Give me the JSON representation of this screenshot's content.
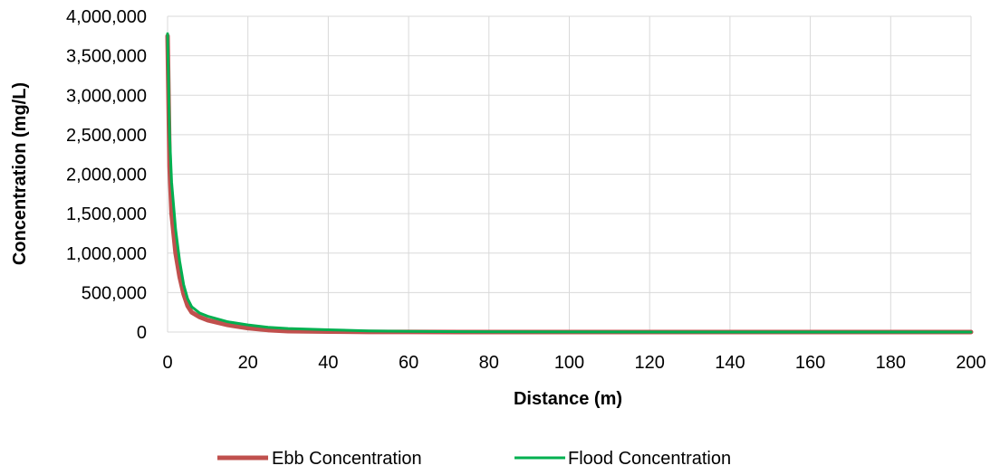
{
  "chart_data": {
    "type": "line",
    "title": "",
    "xlabel": "Distance (m)",
    "ylabel": "Concentration (mg/L)",
    "xlim": [
      0,
      200
    ],
    "ylim": [
      0,
      4000000
    ],
    "xticks": [
      0,
      20,
      40,
      60,
      80,
      100,
      120,
      140,
      160,
      180,
      200
    ],
    "yticks": [
      0,
      500000,
      1000000,
      1500000,
      2000000,
      2500000,
      3000000,
      3500000,
      4000000
    ],
    "xtick_labels": [
      "0",
      "20",
      "40",
      "60",
      "80",
      "100",
      "120",
      "140",
      "160",
      "180",
      "200"
    ],
    "ytick_labels": [
      "0",
      "500,000",
      "1,000,000",
      "1,500,000",
      "2,000,000",
      "2,500,000",
      "3,000,000",
      "3,500,000",
      "4,000,000"
    ],
    "grid": "both",
    "legend_position": "bottom",
    "series": [
      {
        "name": "Ebb Concentration",
        "color": "#c0504d",
        "x": [
          0,
          0.5,
          1,
          2,
          3,
          4,
          5,
          6,
          8,
          10,
          15,
          20,
          25,
          30,
          40,
          50,
          60,
          80,
          100,
          150,
          200
        ],
        "y": [
          3750000,
          2100000,
          1500000,
          1000000,
          700000,
          480000,
          330000,
          250000,
          190000,
          150000,
          90000,
          50000,
          25000,
          12000,
          5000,
          2000,
          1000,
          500,
          200,
          100,
          0
        ]
      },
      {
        "name": "Flood Concentration",
        "color": "#00b050",
        "x": [
          0,
          0.5,
          1,
          2,
          3,
          4,
          5,
          6,
          8,
          10,
          15,
          20,
          25,
          30,
          40,
          50,
          60,
          80,
          100,
          150,
          200
        ],
        "y": [
          3780000,
          2500000,
          1900000,
          1300000,
          900000,
          600000,
          420000,
          320000,
          240000,
          200000,
          130000,
          90000,
          60000,
          45000,
          28000,
          15000,
          8000,
          3000,
          1000,
          300,
          0
        ]
      }
    ]
  }
}
